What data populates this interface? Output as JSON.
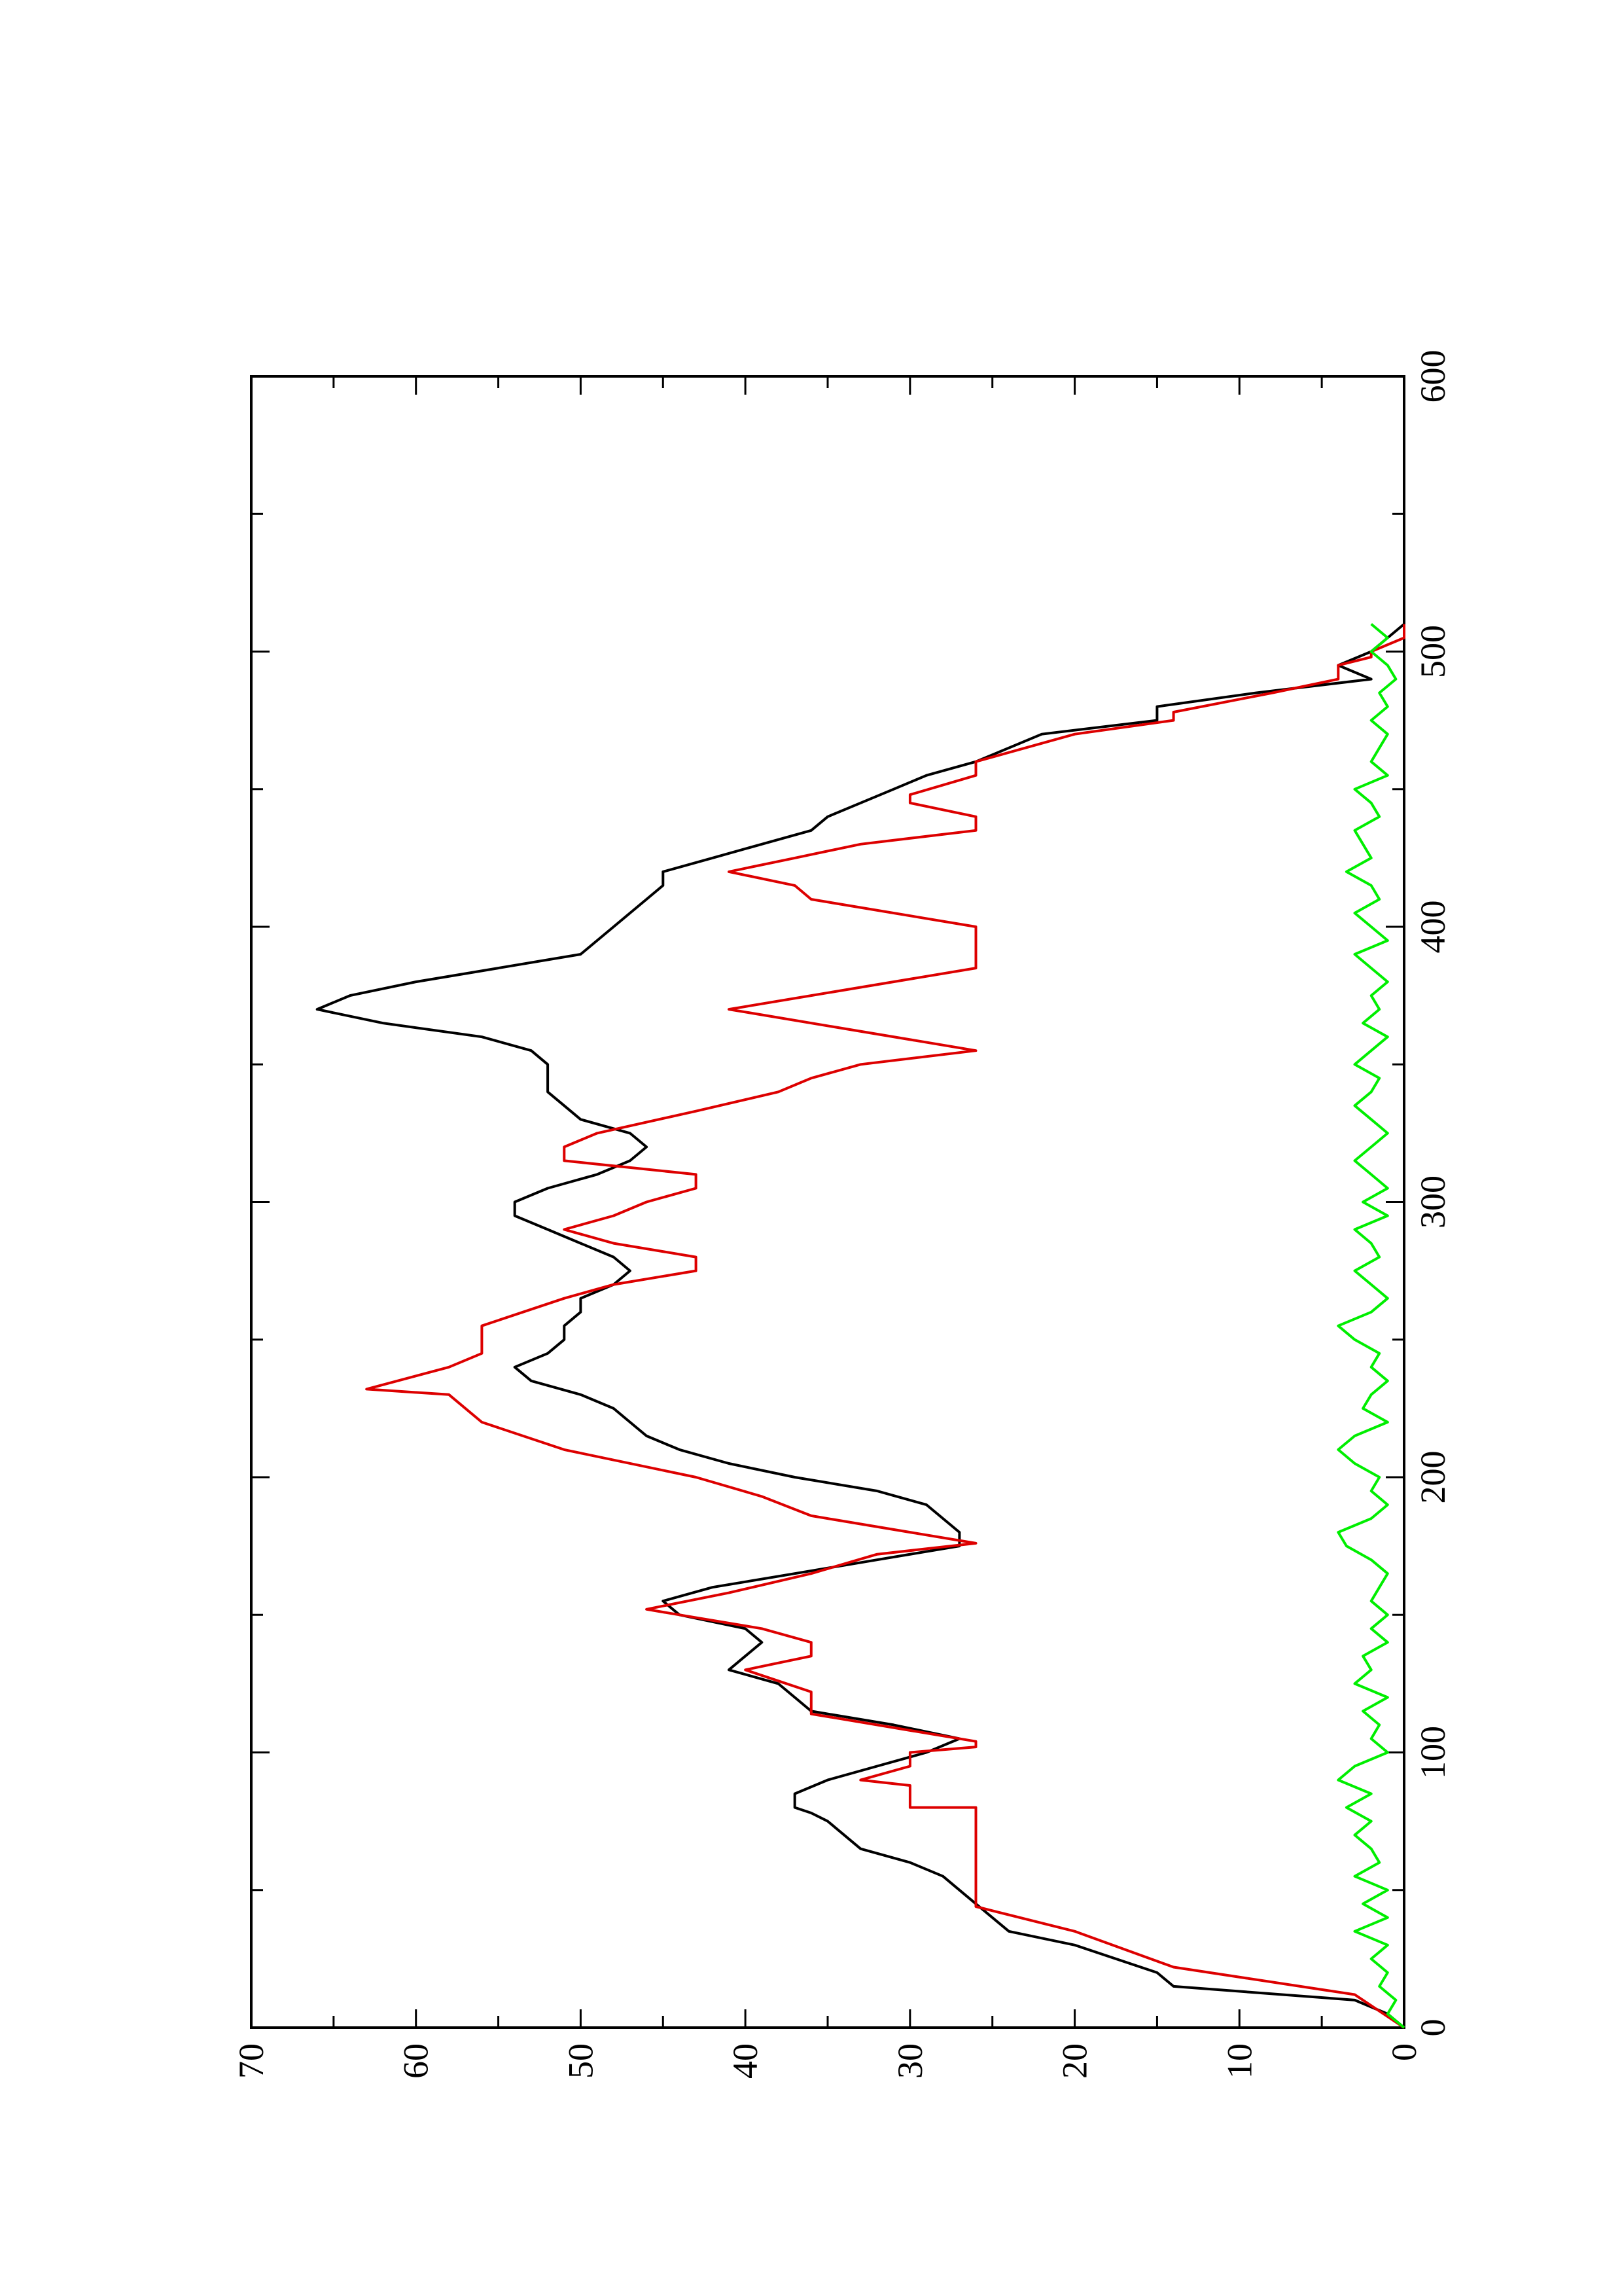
{
  "chart_data": {
    "type": "line",
    "orientation": "rotated-90-ccw",
    "title": "",
    "xlabel": "",
    "ylabel": "",
    "xlim": [
      0,
      600
    ],
    "ylim": [
      0,
      70
    ],
    "x_ticks": [
      "0",
      "100",
      "200",
      "300",
      "400",
      "500",
      "600"
    ],
    "y_ticks": [
      "0",
      "10",
      "20",
      "30",
      "40",
      "50",
      "60",
      "70"
    ],
    "grid": false,
    "legend": "none",
    "series": [
      {
        "color": "#000000",
        "points": [
          [
            0,
            0
          ],
          [
            5,
            1
          ],
          [
            10,
            3
          ],
          [
            15,
            14
          ],
          [
            20,
            15
          ],
          [
            30,
            20
          ],
          [
            35,
            24
          ],
          [
            40,
            25
          ],
          [
            45,
            26
          ],
          [
            50,
            27
          ],
          [
            55,
            28
          ],
          [
            60,
            30
          ],
          [
            65,
            33
          ],
          [
            70,
            34
          ],
          [
            75,
            35
          ],
          [
            78,
            36
          ],
          [
            80,
            37
          ],
          [
            85,
            37
          ],
          [
            90,
            35
          ],
          [
            95,
            32
          ],
          [
            100,
            29
          ],
          [
            105,
            27
          ],
          [
            110,
            31
          ],
          [
            115,
            36
          ],
          [
            120,
            37
          ],
          [
            125,
            38
          ],
          [
            130,
            41
          ],
          [
            135,
            40
          ],
          [
            140,
            39
          ],
          [
            145,
            40
          ],
          [
            150,
            44
          ],
          [
            155,
            45
          ],
          [
            160,
            42
          ],
          [
            165,
            37
          ],
          [
            170,
            32
          ],
          [
            175,
            27
          ],
          [
            180,
            27
          ],
          [
            185,
            28
          ],
          [
            190,
            29
          ],
          [
            195,
            32
          ],
          [
            200,
            37
          ],
          [
            205,
            41
          ],
          [
            210,
            44
          ],
          [
            215,
            46
          ],
          [
            220,
            47
          ],
          [
            225,
            48
          ],
          [
            230,
            50
          ],
          [
            235,
            53
          ],
          [
            240,
            54
          ],
          [
            245,
            52
          ],
          [
            250,
            51
          ],
          [
            255,
            51
          ],
          [
            260,
            50
          ],
          [
            265,
            50
          ],
          [
            270,
            48
          ],
          [
            275,
            47
          ],
          [
            280,
            48
          ],
          [
            285,
            50
          ],
          [
            290,
            52
          ],
          [
            295,
            54
          ],
          [
            300,
            54
          ],
          [
            305,
            52
          ],
          [
            310,
            49
          ],
          [
            315,
            47
          ],
          [
            320,
            46
          ],
          [
            325,
            47
          ],
          [
            330,
            50
          ],
          [
            335,
            51
          ],
          [
            340,
            52
          ],
          [
            345,
            52
          ],
          [
            350,
            52
          ],
          [
            355,
            53
          ],
          [
            360,
            56
          ],
          [
            365,
            62
          ],
          [
            370,
            66
          ],
          [
            375,
            64
          ],
          [
            380,
            60
          ],
          [
            385,
            55
          ],
          [
            390,
            50
          ],
          [
            395,
            49
          ],
          [
            400,
            48
          ],
          [
            405,
            47
          ],
          [
            410,
            46
          ],
          [
            415,
            45
          ],
          [
            420,
            45
          ],
          [
            425,
            42
          ],
          [
            430,
            39
          ],
          [
            435,
            36
          ],
          [
            440,
            35
          ],
          [
            445,
            33
          ],
          [
            450,
            31
          ],
          [
            455,
            29
          ],
          [
            460,
            26
          ],
          [
            465,
            24
          ],
          [
            470,
            22
          ],
          [
            475,
            15
          ],
          [
            480,
            15
          ],
          [
            485,
            9
          ],
          [
            490,
            2
          ],
          [
            495,
            4
          ],
          [
            500,
            2
          ],
          [
            505,
            1
          ],
          [
            510,
            0
          ]
        ]
      },
      {
        "color": "#dd0000",
        "points": [
          [
            0,
            0
          ],
          [
            12,
            3
          ],
          [
            22,
            14
          ],
          [
            22,
            14
          ],
          [
            35,
            20
          ],
          [
            35,
            20
          ],
          [
            44,
            26
          ],
          [
            80,
            26
          ],
          [
            80,
            30
          ],
          [
            88,
            30
          ],
          [
            90,
            33
          ],
          [
            95,
            30
          ],
          [
            100,
            30
          ],
          [
            102,
            26
          ],
          [
            104,
            26
          ],
          [
            114,
            36
          ],
          [
            122,
            36
          ],
          [
            128,
            39
          ],
          [
            130,
            40
          ],
          [
            135,
            36
          ],
          [
            138,
            36
          ],
          [
            140,
            36
          ],
          [
            145,
            39
          ],
          [
            150,
            44
          ],
          [
            152,
            46
          ],
          [
            158,
            41
          ],
          [
            165,
            36
          ],
          [
            172,
            32
          ],
          [
            176,
            26
          ],
          [
            186,
            36
          ],
          [
            193,
            39
          ],
          [
            200,
            43
          ],
          [
            210,
            51
          ],
          [
            220,
            56
          ],
          [
            230,
            58
          ],
          [
            232,
            63
          ],
          [
            240,
            58
          ],
          [
            245,
            56
          ],
          [
            255,
            56
          ],
          [
            265,
            51
          ],
          [
            270,
            48
          ],
          [
            275,
            43
          ],
          [
            280,
            43
          ],
          [
            285,
            48
          ],
          [
            290,
            51
          ],
          [
            295,
            48
          ],
          [
            300,
            46
          ],
          [
            305,
            43
          ],
          [
            310,
            43
          ],
          [
            315,
            51
          ],
          [
            320,
            51
          ],
          [
            325,
            49
          ],
          [
            333,
            43
          ],
          [
            340,
            38
          ],
          [
            345,
            36
          ],
          [
            350,
            33
          ],
          [
            355,
            26
          ],
          [
            370,
            41
          ],
          [
            385,
            26
          ],
          [
            400,
            26
          ],
          [
            410,
            36
          ],
          [
            415,
            37
          ],
          [
            420,
            41
          ],
          [
            425,
            37
          ],
          [
            430,
            33
          ],
          [
            435,
            26
          ],
          [
            440,
            26
          ],
          [
            445,
            30
          ],
          [
            448,
            30
          ],
          [
            455,
            26
          ],
          [
            460,
            26
          ],
          [
            470,
            20
          ],
          [
            475,
            14
          ],
          [
            478,
            14
          ],
          [
            485,
            8
          ],
          [
            490,
            4
          ],
          [
            495,
            4
          ],
          [
            498,
            2
          ],
          [
            500,
            2
          ],
          [
            505,
            0
          ],
          [
            510,
            0
          ]
        ]
      },
      {
        "color": "#00ee00",
        "points": [
          [
            0,
            0
          ],
          [
            5,
            1
          ],
          [
            10,
            0.5
          ],
          [
            15,
            1.5
          ],
          [
            20,
            1
          ],
          [
            25,
            2
          ],
          [
            30,
            1
          ],
          [
            35,
            3
          ],
          [
            40,
            1
          ],
          [
            45,
            2.5
          ],
          [
            50,
            1
          ],
          [
            55,
            3
          ],
          [
            60,
            1.5
          ],
          [
            65,
            2
          ],
          [
            70,
            3
          ],
          [
            75,
            2
          ],
          [
            80,
            3.5
          ],
          [
            85,
            2
          ],
          [
            90,
            4
          ],
          [
            95,
            3
          ],
          [
            100,
            1
          ],
          [
            105,
            2
          ],
          [
            110,
            1.5
          ],
          [
            115,
            2.5
          ],
          [
            120,
            1
          ],
          [
            125,
            3
          ],
          [
            130,
            2
          ],
          [
            135,
            2.5
          ],
          [
            140,
            1
          ],
          [
            145,
            2
          ],
          [
            150,
            1
          ],
          [
            155,
            2
          ],
          [
            160,
            1.5
          ],
          [
            165,
            1
          ],
          [
            170,
            2
          ],
          [
            175,
            3.5
          ],
          [
            180,
            4
          ],
          [
            185,
            2
          ],
          [
            190,
            1
          ],
          [
            195,
            2
          ],
          [
            200,
            1.5
          ],
          [
            205,
            3
          ],
          [
            210,
            4
          ],
          [
            215,
            3
          ],
          [
            220,
            1
          ],
          [
            225,
            2.5
          ],
          [
            230,
            2
          ],
          [
            235,
            1
          ],
          [
            240,
            2
          ],
          [
            245,
            1.5
          ],
          [
            250,
            3
          ],
          [
            255,
            4
          ],
          [
            260,
            2
          ],
          [
            265,
            1
          ],
          [
            270,
            2
          ],
          [
            275,
            3
          ],
          [
            280,
            1.5
          ],
          [
            285,
            2
          ],
          [
            290,
            3
          ],
          [
            295,
            1
          ],
          [
            300,
            2.5
          ],
          [
            305,
            1
          ],
          [
            310,
            2
          ],
          [
            315,
            3
          ],
          [
            320,
            2
          ],
          [
            325,
            1
          ],
          [
            330,
            2
          ],
          [
            335,
            3
          ],
          [
            340,
            2
          ],
          [
            345,
            1.5
          ],
          [
            350,
            3
          ],
          [
            355,
            2
          ],
          [
            360,
            1
          ],
          [
            365,
            2.5
          ],
          [
            370,
            1.5
          ],
          [
            375,
            2
          ],
          [
            380,
            1
          ],
          [
            385,
            2
          ],
          [
            390,
            3
          ],
          [
            395,
            1
          ],
          [
            400,
            2
          ],
          [
            405,
            3
          ],
          [
            410,
            1.5
          ],
          [
            415,
            2
          ],
          [
            420,
            3.5
          ],
          [
            425,
            2
          ],
          [
            430,
            2.5
          ],
          [
            435,
            3
          ],
          [
            440,
            1.5
          ],
          [
            445,
            2
          ],
          [
            450,
            3
          ],
          [
            455,
            1
          ],
          [
            460,
            2
          ],
          [
            465,
            1.5
          ],
          [
            470,
            1
          ],
          [
            475,
            2
          ],
          [
            480,
            1
          ],
          [
            485,
            1.5
          ],
          [
            490,
            0.5
          ],
          [
            495,
            1
          ],
          [
            500,
            2
          ],
          [
            505,
            1
          ],
          [
            510,
            2
          ]
        ]
      }
    ]
  }
}
